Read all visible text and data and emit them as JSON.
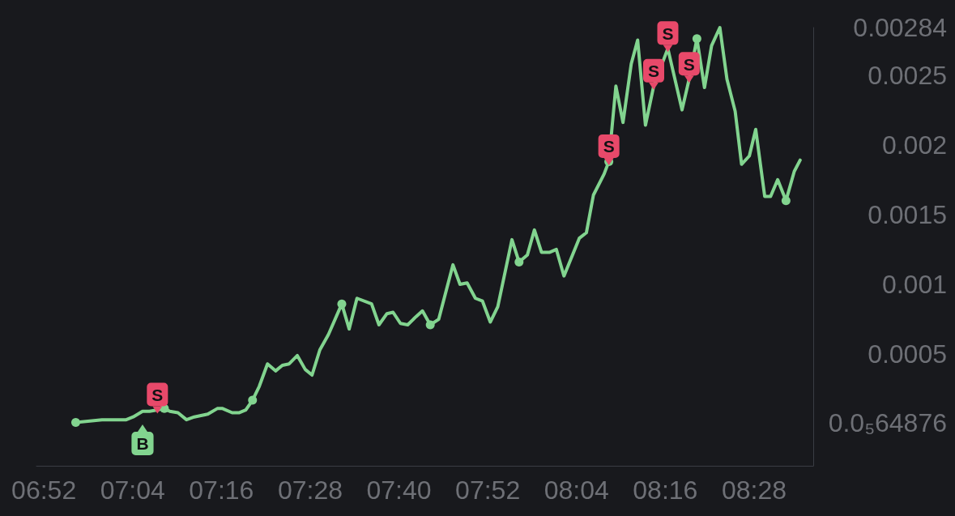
{
  "chart_data": {
    "type": "line",
    "x": [
      6.9385,
      6.9977,
      7.0523,
      7.0679,
      7.089,
      7.1047,
      7.1225,
      7.1382,
      7.1505,
      7.1688,
      7.188,
      7.2056,
      7.2207,
      7.2359,
      7.2574,
      7.2694,
      7.291,
      7.3061,
      7.3215,
      7.3368,
      7.3521,
      7.3705,
      7.3887,
      7.404,
      7.4193,
      7.4377,
      7.4556,
      7.4709,
      7.4884,
      7.5078,
      7.5379,
      7.5545,
      7.5721,
      7.605,
      7.6216,
      7.6396,
      7.6534,
      7.67,
      7.6864,
      7.7056,
      7.7196,
      7.7372,
      7.7563,
      7.7883,
      7.8042,
      7.8202,
      7.8389,
      7.8548,
      7.8724,
      7.8893,
      7.9212,
      7.9372,
      7.9559,
      7.9718,
      7.9878,
      8.0065,
      8.0213,
      8.0384,
      8.0729,
      8.0889,
      8.1048,
      8.1288,
      8.1395,
      8.1554,
      8.1714,
      8.19,
      8.2044,
      8.222,
      8.2405,
      8.2724,
      8.3044,
      8.3204,
      8.3379,
      8.355,
      8.371,
      8.3896,
      8.4056,
      8.4241,
      8.4385,
      8.456,
      8.4704,
      8.4907,
      8.5039,
      8.5199,
      8.5386,
      8.5573,
      8.5705
    ],
    "series": [
      {
        "color": "#82d48f",
        "values": [
          1e-05,
          3e-05,
          3e-05,
          5e-05,
          9e-05,
          9e-05,
          0.0001,
          0.00011,
          9e-05,
          8e-05,
          3e-05,
          5e-05,
          6e-05,
          7e-05,
          0.00011,
          0.00011,
          8e-05,
          8e-05,
          0.0001,
          0.00017,
          0.00027,
          0.00043,
          0.00038,
          0.00042,
          0.00043,
          0.00049,
          0.00039,
          0.00035,
          0.00053,
          0.00064,
          0.00086,
          0.00068,
          0.0009,
          0.00086,
          0.00071,
          0.00079,
          0.0008,
          0.00072,
          0.00071,
          0.00077,
          0.00081,
          0.00071,
          0.00075,
          0.00114,
          0.001,
          0.00101,
          0.0009,
          0.00088,
          0.00073,
          0.00084,
          0.00132,
          0.00116,
          0.00121,
          0.00139,
          0.00123,
          0.00123,
          0.00125,
          0.00106,
          0.00133,
          0.00137,
          0.00164,
          0.00179,
          0.00188,
          0.00242,
          0.00216,
          0.00258,
          0.00275,
          0.00214,
          0.00242,
          0.00269,
          0.00225,
          0.00247,
          0.00276,
          0.00241,
          0.00271,
          0.00284,
          0.00247,
          0.00224,
          0.00186,
          0.00192,
          0.00211,
          0.00163,
          0.00163,
          0.00175,
          0.0016,
          0.00181,
          0.00189
        ]
      },
      {
        "type": "scatter",
        "color": "#82d48f",
        "marker": "circle",
        "x": [
          6.9385,
          7.1382,
          7.3368,
          7.5379,
          7.7372,
          7.9372,
          8.1395,
          8.3379,
          8.5386
        ],
        "values": [
          1e-05,
          0.00011,
          0.00017,
          0.00086,
          0.00071,
          0.00116,
          0.00188,
          0.00276,
          0.0016
        ]
      },
      {
        "name": "S",
        "type": "scatter",
        "color": "#e8496a",
        "x": [
          7.1225,
          8.1395,
          8.2405,
          8.2724,
          8.3204
        ],
        "values": [
          0.0001,
          0.00188,
          0.00242,
          0.00269,
          0.00247
        ]
      },
      {
        "name": "B",
        "type": "scatter",
        "color": "#82d48f",
        "x": [
          7.089
        ],
        "values": [
          -3e-05
        ]
      }
    ],
    "xlim": [
      6.85,
      8.6
    ],
    "xticks": [
      {
        "value": 6.866667,
        "label": "06:52"
      },
      {
        "value": 7.066667,
        "label": "07:04"
      },
      {
        "value": 7.266667,
        "label": "07:16"
      },
      {
        "value": 7.466667,
        "label": "07:28"
      },
      {
        "value": 7.666667,
        "label": "07:40"
      },
      {
        "value": 7.866667,
        "label": "07:52"
      },
      {
        "value": 8.066667,
        "label": "08:04"
      },
      {
        "value": 8.266667,
        "label": "08:16"
      },
      {
        "value": 8.466667,
        "label": "08:28"
      }
    ],
    "ylim": [
      -0.0003,
      0.00284
    ],
    "yticks": [
      {
        "value": 6.4876e-06,
        "label": "0.0₅64876"
      },
      0.0005,
      0.001,
      0.0015,
      0.002,
      0.0025,
      0.00284
    ],
    "grid": false,
    "line_style": "solid"
  }
}
